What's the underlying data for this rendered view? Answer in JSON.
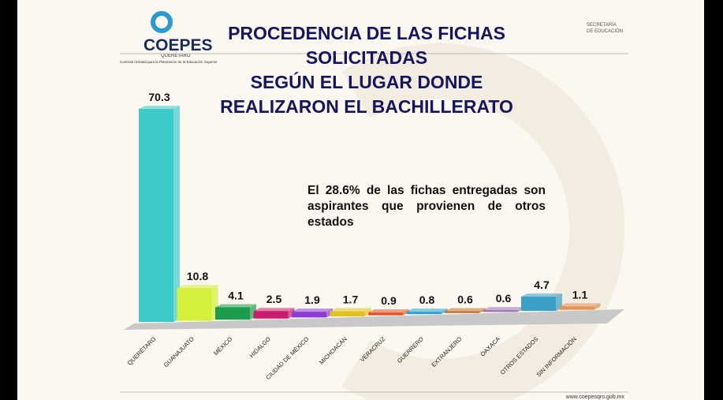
{
  "header": {
    "logo": "COEPES",
    "logo_sub": "QUERÉTARO",
    "logo_caption": "Comisión Estatal para la Planeación de la Educación Superior",
    "agency": [
      "SECRETARÍA",
      "DE EDUCACIÓN"
    ]
  },
  "chart_data": {
    "type": "bar",
    "title": [
      "PROCEDENCIA DE LAS FICHAS",
      "SOLICITADAS",
      "SEGÚN EL LUGAR DONDE",
      "REALIZARON EL BACHILLERATO"
    ],
    "annotation": "El 28.6% de las fichas entregadas son aspirantes que provienen de otros estados",
    "categories": [
      "QUERÉTARO",
      "GUANAJUATO",
      "MÉXICO",
      "HIDALGO",
      "CIUDAD DE MÉXICO",
      "MICHOACÁN",
      "VERACRUZ",
      "GUERRERO",
      "EXTRANJERO",
      "OAXACA",
      "OTROS ESTADOS",
      "SIN INFORMACIÓN"
    ],
    "values": [
      70.3,
      10.8,
      4.1,
      2.5,
      1.9,
      1.7,
      0.9,
      0.8,
      0.6,
      0.6,
      4.7,
      1.1
    ],
    "colors": [
      "#3ccaca",
      "#d4f03a",
      "#1c9c4c",
      "#cc1c6c",
      "#8c3cd2",
      "#e2c222",
      "#e25222",
      "#2aa2d2",
      "#c27232",
      "#9c72b2",
      "#3aa0c8",
      "#e29252"
    ],
    "ylim": [
      0,
      75
    ]
  },
  "footer": "www.coepesqro.gob.mx"
}
